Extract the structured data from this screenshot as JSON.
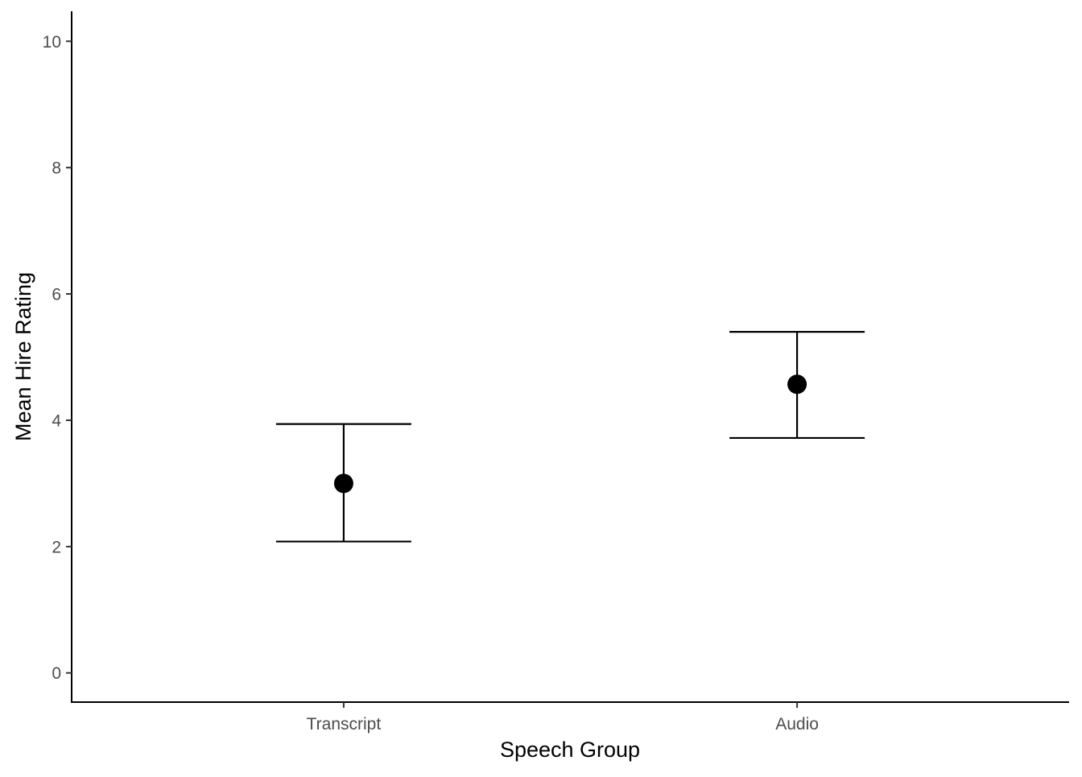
{
  "chart_data": {
    "type": "scatter",
    "title": "",
    "xlabel": "Speech Group",
    "ylabel": "Mean Hire Rating",
    "categories": [
      "Transcript",
      "Audio"
    ],
    "series": [
      {
        "values": [
          3.0,
          4.57
        ],
        "error_lower": [
          2.08,
          3.72
        ],
        "error_upper": [
          3.94,
          5.4
        ]
      }
    ],
    "ylim": [
      0,
      10
    ],
    "y_ticks": [
      "0",
      "2",
      "4",
      "6",
      "8",
      "10"
    ],
    "grid": false,
    "legend": "none",
    "colors": {
      "point": "#000000",
      "axis": "#000000",
      "tick_label": "#4d4d4d"
    }
  }
}
